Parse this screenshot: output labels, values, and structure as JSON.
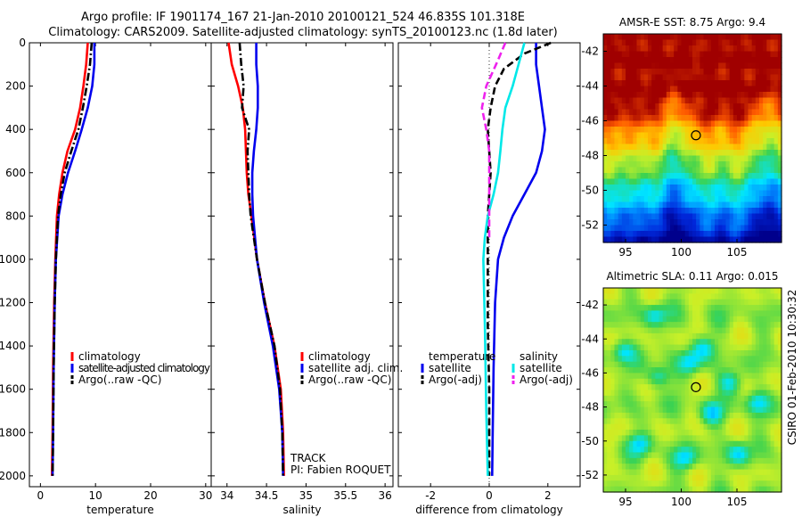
{
  "header": {
    "title_line1": "Argo profile: IF 1901174_167 21-Jan-2010 20100121_524 46.835S 101.318E",
    "title_line2": "Climatology: CARS2009. Satellite-adjusted climatology: synTS_20100123.nc (1.8d later)"
  },
  "side_label": "CSIRO 01-Feb-2010 10:30:32",
  "colors": {
    "climatology": "#ff0000",
    "satellite": "#0000ee",
    "argo": "#000000",
    "salinity_satellite": "#00e8e8",
    "salinity_argo": "#ee22ee"
  },
  "chart_data": [
    {
      "type": "line",
      "id": "temperature",
      "xlabel": "temperature",
      "ylabel": "",
      "xlim": [
        -2,
        31
      ],
      "ylim": [
        2050,
        0
      ],
      "y_reversed": true,
      "xticks": [
        0,
        10,
        20,
        30
      ],
      "yticks": [
        0,
        200,
        400,
        600,
        800,
        1000,
        1200,
        1400,
        1600,
        1800,
        2000
      ],
      "series": [
        {
          "name": "climatology",
          "color": "#ff0000",
          "dash": "solid",
          "x": [
            8.6,
            8.3,
            7.8,
            7.2,
            6.3,
            4.9,
            4.0,
            3.4,
            3.0,
            2.7,
            2.5,
            2.3,
            2.2,
            2.1
          ],
          "y": [
            0,
            100,
            200,
            300,
            400,
            500,
            600,
            700,
            800,
            1000,
            1200,
            1500,
            1800,
            2000
          ]
        },
        {
          "name": "satellite-adjusted climatology",
          "color": "#0000ee",
          "dash": "solid",
          "x": [
            9.8,
            9.8,
            9.4,
            8.6,
            7.5,
            6.3,
            5.0,
            4.0,
            3.3,
            2.8,
            2.6,
            2.4,
            2.3,
            2.2
          ],
          "y": [
            0,
            100,
            200,
            300,
            400,
            500,
            600,
            700,
            800,
            1000,
            1200,
            1500,
            1800,
            2000
          ]
        },
        {
          "name": "Argo(..raw -QC)",
          "color": "#000000",
          "dash": "dashdot",
          "x": [
            9.3,
            9.0,
            8.4,
            7.7,
            6.9,
            5.6,
            4.4,
            3.7,
            3.2,
            2.8,
            2.6,
            2.4,
            2.3,
            2.2
          ],
          "y": [
            0,
            100,
            200,
            300,
            400,
            500,
            600,
            700,
            800,
            1000,
            1200,
            1500,
            1800,
            2000
          ]
        }
      ],
      "legend": {
        "entries": [
          "climatology",
          "satellite-adjusted climatology",
          "Argo(..raw -QC)"
        ]
      }
    },
    {
      "type": "line",
      "id": "salinity",
      "xlabel": "salinity",
      "ylabel": "",
      "xlim": [
        33.8,
        36.1
      ],
      "ylim": [
        2050,
        0
      ],
      "y_reversed": true,
      "xticks": [
        34,
        34.5,
        35,
        35.5,
        36
      ],
      "series": [
        {
          "name": "climatology",
          "color": "#ff0000",
          "dash": "solid",
          "x": [
            34.02,
            34.06,
            34.14,
            34.2,
            34.23,
            34.24,
            34.25,
            34.27,
            34.31,
            34.38,
            34.48,
            34.6,
            34.68,
            34.71,
            34.72
          ],
          "y": [
            0,
            100,
            200,
            300,
            400,
            500,
            600,
            700,
            800,
            1000,
            1200,
            1400,
            1600,
            1800,
            2000
          ]
        },
        {
          "name": "satellite adj. clim.",
          "color": "#0000ee",
          "dash": "solid",
          "x": [
            34.37,
            34.37,
            34.39,
            34.39,
            34.37,
            34.34,
            34.32,
            34.32,
            34.33,
            34.38,
            34.47,
            34.58,
            34.66,
            34.7,
            34.71
          ],
          "y": [
            0,
            100,
            200,
            300,
            400,
            500,
            600,
            700,
            800,
            1000,
            1200,
            1400,
            1600,
            1800,
            2000
          ]
        },
        {
          "name": "Argo(..raw -QC)",
          "color": "#000000",
          "dash": "dashdot",
          "x": [
            34.16,
            34.18,
            34.21,
            34.19,
            34.28,
            34.26,
            34.27,
            34.28,
            34.3,
            34.38,
            34.48,
            34.6,
            34.67,
            34.7,
            34.71
          ],
          "y": [
            0,
            100,
            200,
            300,
            400,
            500,
            600,
            700,
            800,
            1000,
            1200,
            1400,
            1600,
            1800,
            2000
          ]
        }
      ],
      "legend": {
        "entries": [
          "climatology",
          "satellite adj. clim.",
          "Argo(..raw -QC)"
        ]
      },
      "annotations": [
        "TRACK",
        "PI: Fabien ROQUET"
      ]
    },
    {
      "type": "line",
      "id": "difference",
      "xlabel": "difference from climatology",
      "ylabel": "",
      "xlim": [
        -3.1,
        3.1
      ],
      "ylim": [
        2050,
        0
      ],
      "y_reversed": true,
      "xticks": [
        -2,
        0,
        2
      ],
      "zero_line": "dotted",
      "series": [
        {
          "name": "temperature satellite",
          "color": "#0000ee",
          "dash": "solid",
          "x": [
            1.6,
            1.6,
            1.7,
            1.8,
            1.9,
            1.8,
            1.6,
            1.2,
            0.8,
            0.5,
            0.3,
            0.2,
            0.15,
            0.12,
            0.1
          ],
          "y": [
            0,
            100,
            200,
            300,
            400,
            500,
            600,
            700,
            800,
            900,
            1000,
            1200,
            1500,
            1800,
            2000
          ]
        },
        {
          "name": "temperature Argo(-adj)",
          "color": "#000000",
          "dash": "dashed",
          "x": [
            2.1,
            1.2,
            0.5,
            0.2,
            0.05,
            -0.05,
            0.0,
            0.05,
            0.0,
            -0.05,
            -0.05,
            -0.05,
            0.0,
            0.0
          ],
          "y": [
            0,
            50,
            120,
            200,
            300,
            400,
            500,
            600,
            700,
            800,
            1000,
            1300,
            1600,
            2000
          ]
        },
        {
          "name": "salinity satellite",
          "color": "#00e8e8",
          "dash": "solid",
          "x": [
            1.2,
            1.0,
            0.8,
            0.55,
            0.45,
            0.38,
            0.3,
            0.15,
            -0.05,
            -0.15,
            -0.2,
            -0.15,
            -0.1,
            -0.05
          ],
          "y": [
            0,
            100,
            200,
            300,
            400,
            500,
            600,
            700,
            800,
            900,
            1000,
            1300,
            1700,
            2000
          ]
        },
        {
          "name": "salinity Argo(-adj)",
          "color": "#ee22ee",
          "dash": "dashed",
          "x": [
            0.55,
            0.3,
            -0.1,
            -0.25,
            -0.1,
            0.0,
            0.0,
            0.0,
            0.0,
            0.0
          ],
          "y": [
            0,
            80,
            200,
            300,
            400,
            500,
            600,
            700,
            800,
            900
          ]
        }
      ],
      "legend": {
        "headers": [
          "temperature",
          "salinity"
        ],
        "entries": [
          "satellite",
          "Argo(-adj)",
          "satellite",
          "Argo(-adj)"
        ]
      }
    },
    {
      "type": "heatmap",
      "id": "sst_map",
      "title": "AMSR-E SST: 8.75 Argo: 9.4",
      "xlim": [
        93,
        109
      ],
      "ylim": [
        -53,
        -41
      ],
      "xticks": [
        95,
        100,
        105
      ],
      "yticks": [
        -42,
        -44,
        -46,
        -48,
        -50,
        -52
      ],
      "point": {
        "lon": 101.318,
        "lat": -46.835
      }
    },
    {
      "type": "heatmap",
      "id": "sla_map",
      "title": "Altimetric SLA: 0.11 Argo: 0.015",
      "xlim": [
        93,
        109
      ],
      "ylim": [
        -53,
        -41
      ],
      "xticks": [
        95,
        100,
        105
      ],
      "yticks": [
        -42,
        -44,
        -46,
        -48,
        -50,
        -52
      ],
      "point": {
        "lon": 101.318,
        "lat": -46.835
      }
    }
  ]
}
